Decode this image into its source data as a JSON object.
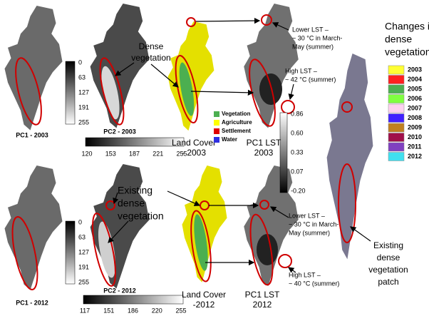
{
  "top": {
    "pc1": {
      "label": "PC1 - 2003",
      "ticks": [
        "0",
        "63",
        "127",
        "191",
        "255"
      ]
    },
    "pc2": {
      "label": "PC2 - 2003",
      "ticks": [
        "120",
        "153",
        "187",
        "221",
        "255"
      ]
    },
    "dense_note": [
      "Dense",
      "vegetation"
    ],
    "land_cover": {
      "label": [
        "Land Cover",
        "- 2003"
      ],
      "legend": [
        {
          "name": "Vegetation",
          "color": "#4caf50"
        },
        {
          "name": "Agriculture",
          "color": "#ffff00"
        },
        {
          "name": "Settlement",
          "color": "#e00000"
        },
        {
          "name": "Water",
          "color": "#3030e0"
        }
      ]
    },
    "lst": {
      "label": [
        "PC1 LST",
        "2003"
      ],
      "ticks": [
        "0.86",
        "0.60",
        "0.33",
        "0.07",
        "-0.20"
      ]
    },
    "lower_lst": [
      "Lower LST –",
      "~ 30 °C in March-",
      "May (summer)"
    ],
    "high_lst": [
      "High LST –",
      "~ 42 °C (summer)"
    ],
    "changes_title": [
      "Changes in",
      "dense",
      "vegetation"
    ],
    "years": [
      {
        "name": "2003",
        "color": "#ffff33"
      },
      {
        "name": "2004",
        "color": "#ff2020"
      },
      {
        "name": "2005",
        "color": "#4caf50"
      },
      {
        "name": "2006",
        "color": "#80ff40"
      },
      {
        "name": "2007",
        "color": "#ffd0f0"
      },
      {
        "name": "2008",
        "color": "#4020ff"
      },
      {
        "name": "2009",
        "color": "#c08020"
      },
      {
        "name": "2010",
        "color": "#a0104a"
      },
      {
        "name": "2011",
        "color": "#8040c0"
      },
      {
        "name": "2012",
        "color": "#40e0f0"
      }
    ]
  },
  "bottom": {
    "pc1": {
      "label": "PC1 - 2012",
      "ticks": [
        "0",
        "63",
        "127",
        "191",
        "255"
      ]
    },
    "pc2": {
      "label": "PC2 - 2012",
      "ticks": [
        "117",
        "151",
        "186",
        "220",
        "255"
      ]
    },
    "existing_note": [
      "Existing",
      "dense",
      "vegetation"
    ],
    "land_cover": {
      "label": [
        "Land Cover",
        "-2012"
      ]
    },
    "lst": {
      "label": [
        "PC1 LST",
        "2012"
      ]
    },
    "lower_lst": [
      "Lower LST –",
      "~ 30 °C in March-",
      "May (summer)"
    ],
    "high_lst": [
      "High LST –",
      "~ 40 °C (summer)"
    ],
    "patch_note": [
      "Existing",
      "dense",
      "vegetation",
      "patch"
    ]
  }
}
